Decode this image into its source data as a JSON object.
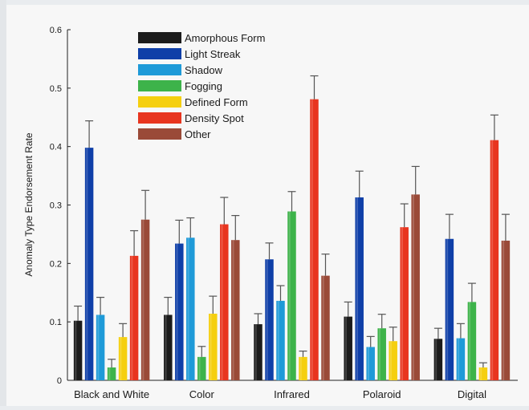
{
  "chart_data": {
    "type": "bar",
    "ylabel": "Anomaly Type Endorsement Rate",
    "xlabel": "",
    "ylim": [
      0,
      0.6
    ],
    "y_ticks": [
      0,
      0.1,
      0.2,
      0.3,
      0.4,
      0.5,
      0.6
    ],
    "y_tick_labels": [
      "0",
      "0.1",
      "0.2",
      "0.3",
      "0.4",
      "0.5",
      "0.6"
    ],
    "categories": [
      "Black and White",
      "Color",
      "Infrared",
      "Polaroid",
      "Digital"
    ],
    "legend_position": "top-left",
    "grid": false,
    "series": [
      {
        "name": "Amorphous Form",
        "color": "#1c1c1c",
        "values": [
          0.102,
          0.112,
          0.096,
          0.109,
          0.071
        ],
        "errors": [
          0.025,
          0.03,
          0.018,
          0.025,
          0.018
        ]
      },
      {
        "name": "Light Streak",
        "color": "#0f3fa8",
        "values": [
          0.398,
          0.234,
          0.207,
          0.313,
          0.242
        ],
        "errors": [
          0.046,
          0.04,
          0.028,
          0.045,
          0.042
        ]
      },
      {
        "name": "Shadow",
        "color": "#1e9ad8",
        "values": [
          0.112,
          0.244,
          0.136,
          0.057,
          0.072
        ],
        "errors": [
          0.03,
          0.034,
          0.026,
          0.018,
          0.025
        ]
      },
      {
        "name": "Fogging",
        "color": "#3db34a",
        "values": [
          0.022,
          0.04,
          0.289,
          0.089,
          0.134
        ],
        "errors": [
          0.014,
          0.018,
          0.034,
          0.024,
          0.032
        ]
      },
      {
        "name": "Defined Form",
        "color": "#f5cf0f",
        "values": [
          0.074,
          0.114,
          0.04,
          0.067,
          0.022
        ],
        "errors": [
          0.023,
          0.03,
          0.01,
          0.024,
          0.008
        ]
      },
      {
        "name": "Density Spot",
        "color": "#e8351f",
        "values": [
          0.213,
          0.267,
          0.481,
          0.262,
          0.411
        ],
        "errors": [
          0.043,
          0.046,
          0.04,
          0.04,
          0.043
        ]
      },
      {
        "name": "Other",
        "color": "#9a4a38",
        "values": [
          0.275,
          0.24,
          0.179,
          0.318,
          0.239
        ],
        "errors": [
          0.05,
          0.042,
          0.037,
          0.048,
          0.045
        ]
      }
    ]
  }
}
